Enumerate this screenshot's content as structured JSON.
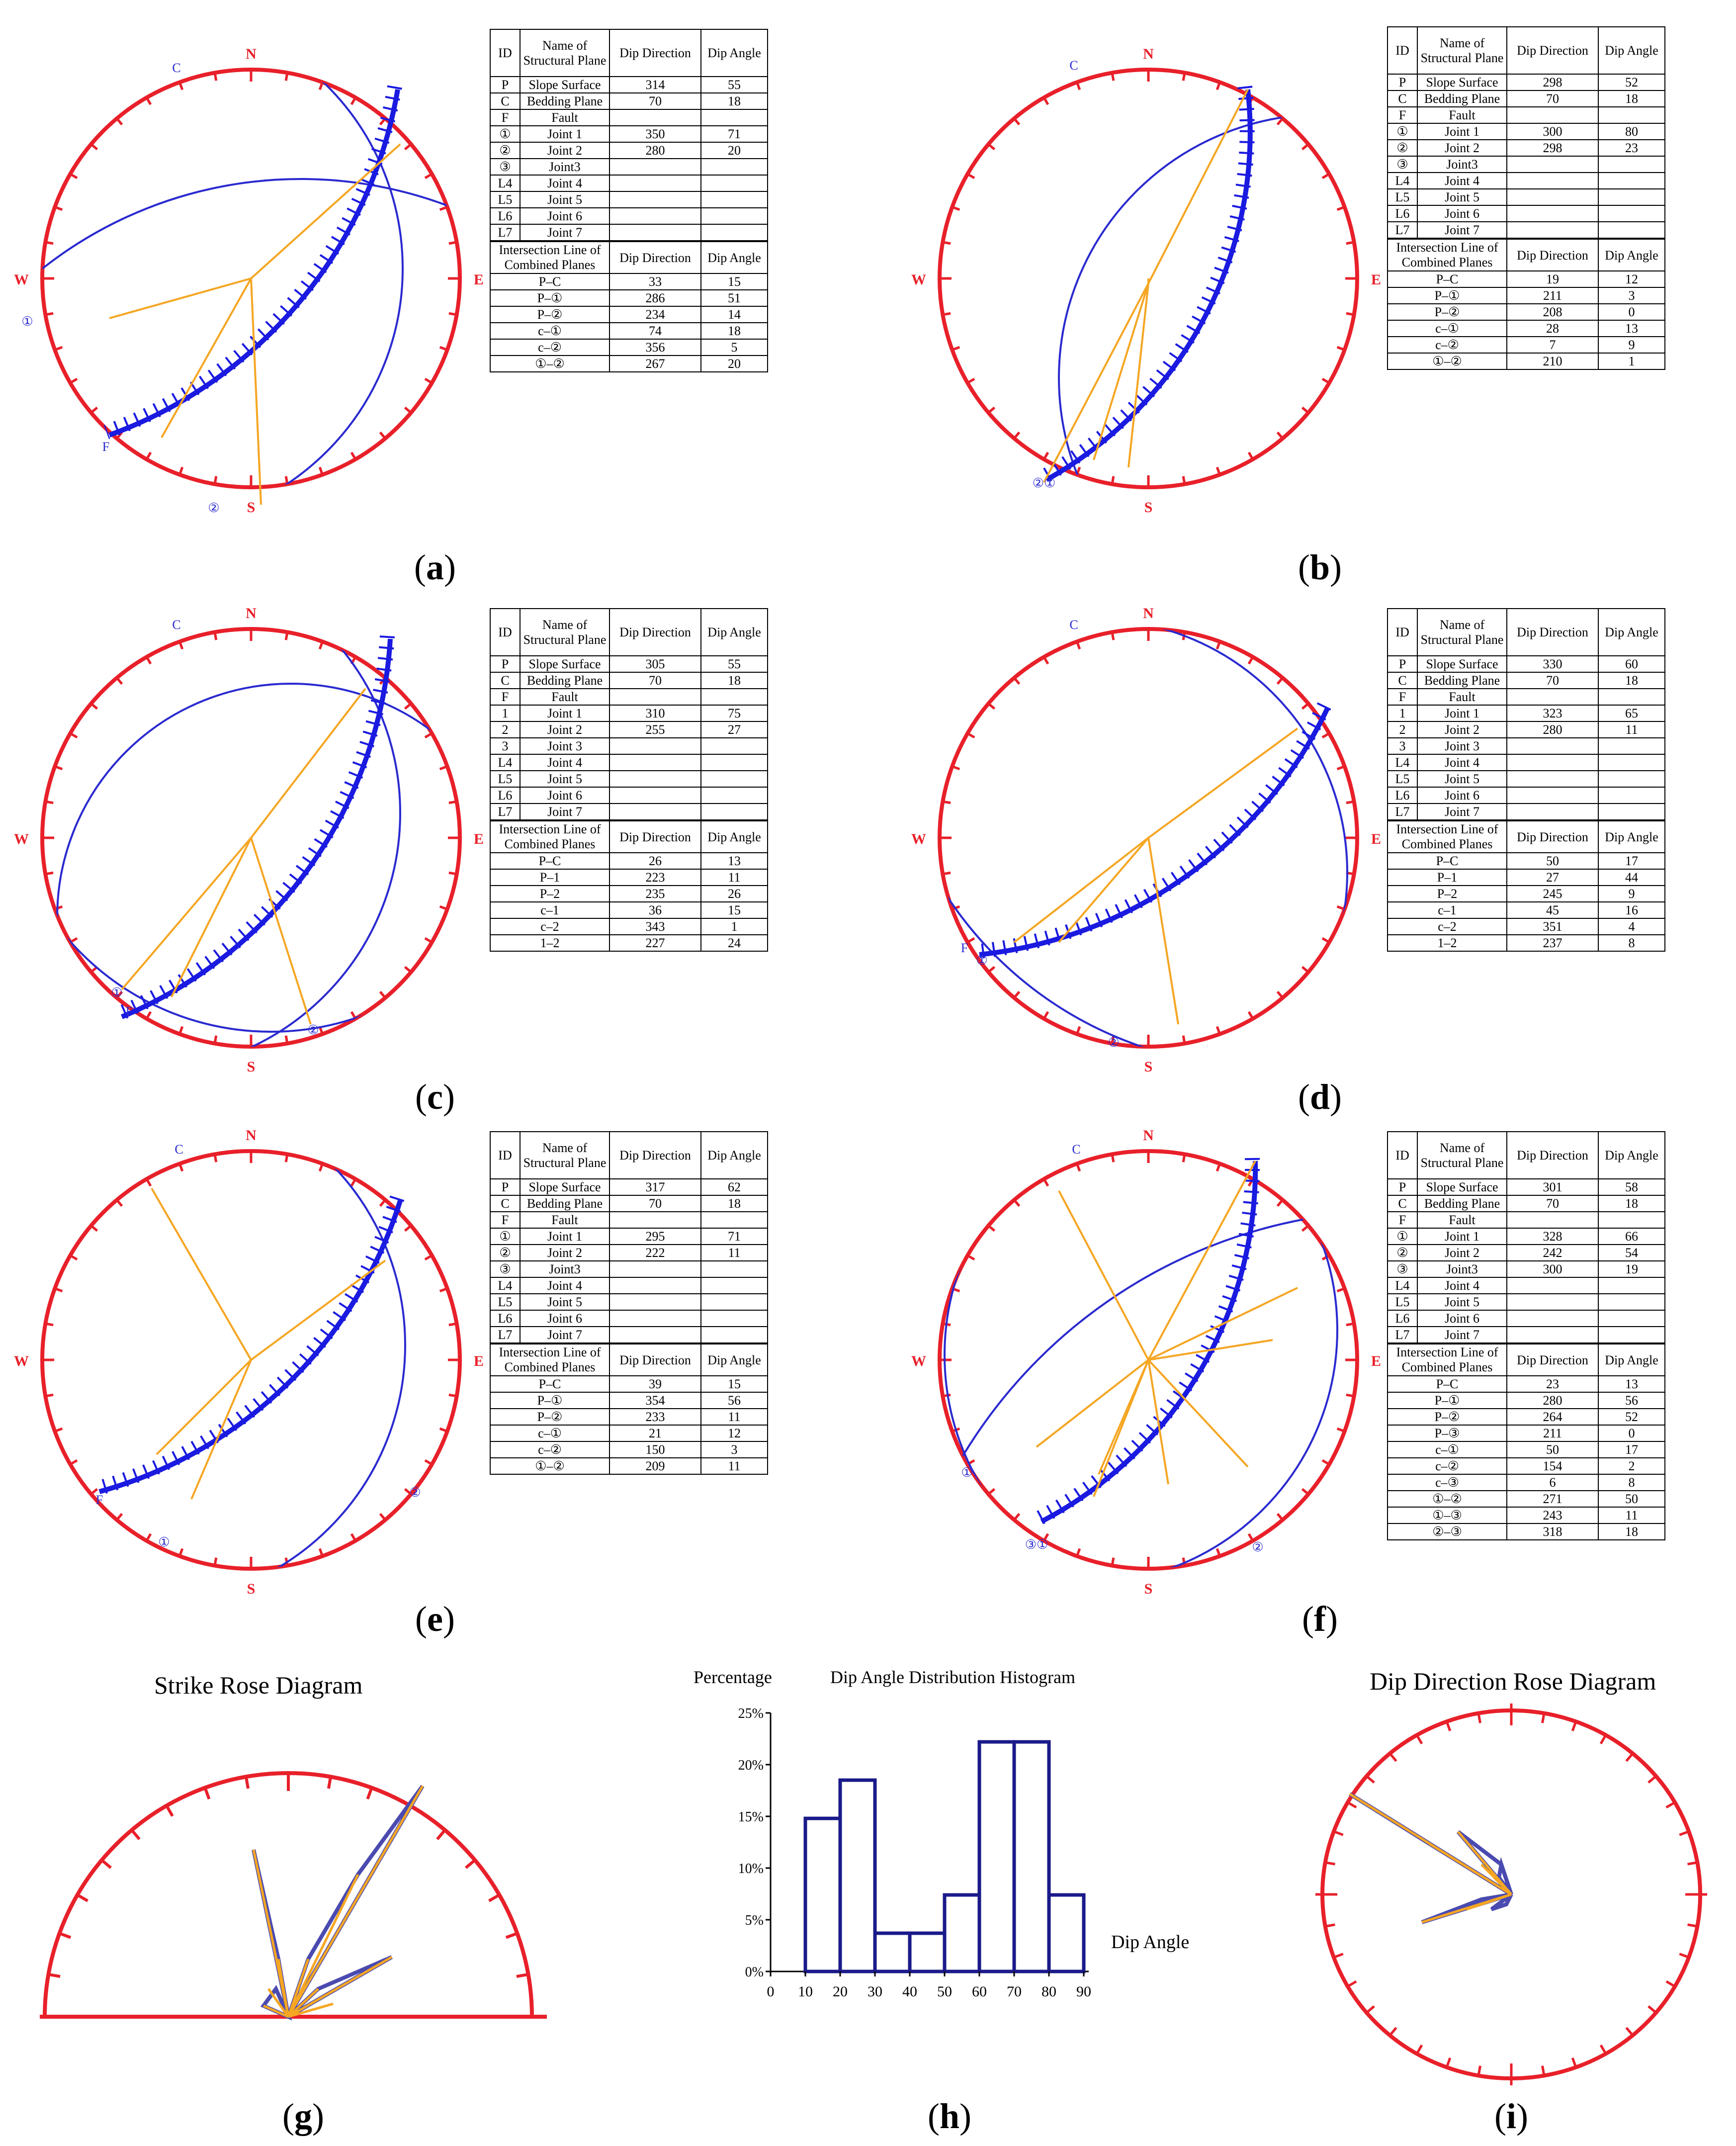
{
  "colors": {
    "outer_circle": "#e8202a",
    "planes": "#2a2ad0",
    "slope": "#1a1ae0",
    "intersections": "#f5a623",
    "table_border": "#000000"
  },
  "compass": {
    "n": "N",
    "s": "S",
    "e": "E",
    "w": "W"
  },
  "table_headers": {
    "id": "ID",
    "name": "Name of Structural Plane",
    "dip_direction": "Dip Direction",
    "dip_angle": "Dip Angle",
    "intersection": "Intersection Line of Combined Planes"
  },
  "panels": [
    {
      "caption": "a",
      "plane_labels": [
        "C",
        "①",
        "F",
        "②"
      ],
      "planes": [
        {
          "id": "P",
          "name": "Slope Surface",
          "dd": "314",
          "da": "55"
        },
        {
          "id": "C",
          "name": "Bedding Plane",
          "dd": "70",
          "da": "18"
        },
        {
          "id": "F",
          "name": "Fault",
          "dd": "",
          "da": ""
        },
        {
          "id": "①",
          "name": "Joint 1",
          "dd": "350",
          "da": "71"
        },
        {
          "id": "②",
          "name": "Joint 2",
          "dd": "280",
          "da": "20"
        },
        {
          "id": "③",
          "name": "Joint3",
          "dd": "",
          "da": ""
        },
        {
          "id": "L4",
          "name": "Joint 4",
          "dd": "",
          "da": ""
        },
        {
          "id": "L5",
          "name": "Joint 5",
          "dd": "",
          "da": ""
        },
        {
          "id": "L6",
          "name": "Joint 6",
          "dd": "",
          "da": ""
        },
        {
          "id": "L7",
          "name": "Joint 7",
          "dd": "",
          "da": ""
        }
      ],
      "intersections": [
        {
          "pair": "P–C",
          "dd": "33",
          "da": "15"
        },
        {
          "pair": "P–①",
          "dd": "286",
          "da": "51"
        },
        {
          "pair": "P–②",
          "dd": "234",
          "da": "14"
        },
        {
          "pair": "c–①",
          "dd": "74",
          "da": "18"
        },
        {
          "pair": "c–②",
          "dd": "356",
          "da": "5"
        },
        {
          "pair": "①–②",
          "dd": "267",
          "da": "20"
        }
      ]
    },
    {
      "caption": "b",
      "plane_labels": [
        "C",
        "②①"
      ],
      "planes": [
        {
          "id": "P",
          "name": "Slope Surface",
          "dd": "298",
          "da": "52"
        },
        {
          "id": "C",
          "name": "Bedding Plane",
          "dd": "70",
          "da": "18"
        },
        {
          "id": "F",
          "name": "Fault",
          "dd": "",
          "da": ""
        },
        {
          "id": "①",
          "name": "Joint 1",
          "dd": "300",
          "da": "80"
        },
        {
          "id": "②",
          "name": "Joint 2",
          "dd": "298",
          "da": "23"
        },
        {
          "id": "③",
          "name": "Joint3",
          "dd": "",
          "da": ""
        },
        {
          "id": "L4",
          "name": "Joint 4",
          "dd": "",
          "da": ""
        },
        {
          "id": "L5",
          "name": "Joint 5",
          "dd": "",
          "da": ""
        },
        {
          "id": "L6",
          "name": "Joint 6",
          "dd": "",
          "da": ""
        },
        {
          "id": "L7",
          "name": "Joint 7",
          "dd": "",
          "da": ""
        }
      ],
      "intersections": [
        {
          "pair": "P–C",
          "dd": "19",
          "da": "12"
        },
        {
          "pair": "P–①",
          "dd": "211",
          "da": "3"
        },
        {
          "pair": "P–②",
          "dd": "208",
          "da": "0"
        },
        {
          "pair": "c–①",
          "dd": "28",
          "da": "13"
        },
        {
          "pair": "c–②",
          "dd": "7",
          "da": "9"
        },
        {
          "pair": "①–②",
          "dd": "210",
          "da": "1"
        }
      ]
    },
    {
      "caption": "c",
      "plane_labels": [
        "C",
        "①",
        "F",
        "②"
      ],
      "planes": [
        {
          "id": "P",
          "name": "Slope Surface",
          "dd": "305",
          "da": "55"
        },
        {
          "id": "C",
          "name": "Bedding Plane",
          "dd": "70",
          "da": "18"
        },
        {
          "id": "F",
          "name": "Fault",
          "dd": "",
          "da": ""
        },
        {
          "id": "1",
          "name": "Joint 1",
          "dd": "310",
          "da": "75"
        },
        {
          "id": "2",
          "name": "Joint 2",
          "dd": "255",
          "da": "27"
        },
        {
          "id": "3",
          "name": "Joint 3",
          "dd": "",
          "da": ""
        },
        {
          "id": "L4",
          "name": "Joint 4",
          "dd": "",
          "da": ""
        },
        {
          "id": "L5",
          "name": "Joint 5",
          "dd": "",
          "da": ""
        },
        {
          "id": "L6",
          "name": "Joint 6",
          "dd": "",
          "da": ""
        },
        {
          "id": "L7",
          "name": "Joint 7",
          "dd": "",
          "da": ""
        }
      ],
      "intersections": [
        {
          "pair": "P–C",
          "dd": "26",
          "da": "13"
        },
        {
          "pair": "P–1",
          "dd": "223",
          "da": "11"
        },
        {
          "pair": "P–2",
          "dd": "235",
          "da": "26"
        },
        {
          "pair": "c–1",
          "dd": "36",
          "da": "15"
        },
        {
          "pair": "c–2",
          "dd": "343",
          "da": "1"
        },
        {
          "pair": "1–2",
          "dd": "227",
          "da": "24"
        }
      ]
    },
    {
      "caption": "d",
      "plane_labels": [
        "C",
        "F",
        "①",
        "②"
      ],
      "planes": [
        {
          "id": "P",
          "name": "Slope Surface",
          "dd": "330",
          "da": "60"
        },
        {
          "id": "C",
          "name": "Bedding Plane",
          "dd": "70",
          "da": "18"
        },
        {
          "id": "F",
          "name": "Fault",
          "dd": "",
          "da": ""
        },
        {
          "id": "1",
          "name": "Joint 1",
          "dd": "323",
          "da": "65"
        },
        {
          "id": "2",
          "name": "Joint 2",
          "dd": "280",
          "da": "11"
        },
        {
          "id": "3",
          "name": "Joint 3",
          "dd": "",
          "da": ""
        },
        {
          "id": "L4",
          "name": "Joint 4",
          "dd": "",
          "da": ""
        },
        {
          "id": "L5",
          "name": "Joint 5",
          "dd": "",
          "da": ""
        },
        {
          "id": "L6",
          "name": "Joint 6",
          "dd": "",
          "da": ""
        },
        {
          "id": "L7",
          "name": "Joint 7",
          "dd": "",
          "da": ""
        }
      ],
      "intersections": [
        {
          "pair": "P–C",
          "dd": "50",
          "da": "17"
        },
        {
          "pair": "P–1",
          "dd": "27",
          "da": "44"
        },
        {
          "pair": "P–2",
          "dd": "245",
          "da": "9"
        },
        {
          "pair": "c–1",
          "dd": "45",
          "da": "16"
        },
        {
          "pair": "c–2",
          "dd": "351",
          "da": "4"
        },
        {
          "pair": "1–2",
          "dd": "237",
          "da": "8"
        }
      ]
    },
    {
      "caption": "e",
      "plane_labels": [
        "C",
        "F",
        "①",
        "②"
      ],
      "planes": [
        {
          "id": "P",
          "name": "Slope Surface",
          "dd": "317",
          "da": "62"
        },
        {
          "id": "C",
          "name": "Bedding Plane",
          "dd": "70",
          "da": "18"
        },
        {
          "id": "F",
          "name": "Fault",
          "dd": "",
          "da": ""
        },
        {
          "id": "①",
          "name": "Joint 1",
          "dd": "295",
          "da": "71"
        },
        {
          "id": "②",
          "name": "Joint 2",
          "dd": "222",
          "da": "11"
        },
        {
          "id": "③",
          "name": "Joint3",
          "dd": "",
          "da": ""
        },
        {
          "id": "L4",
          "name": "Joint 4",
          "dd": "",
          "da": ""
        },
        {
          "id": "L5",
          "name": "Joint 5",
          "dd": "",
          "da": ""
        },
        {
          "id": "L6",
          "name": "Joint 6",
          "dd": "",
          "da": ""
        },
        {
          "id": "L7",
          "name": "Joint 7",
          "dd": "",
          "da": ""
        }
      ],
      "intersections": [
        {
          "pair": "P–C",
          "dd": "39",
          "da": "15"
        },
        {
          "pair": "P–①",
          "dd": "354",
          "da": "56"
        },
        {
          "pair": "P–②",
          "dd": "233",
          "da": "11"
        },
        {
          "pair": "c–①",
          "dd": "21",
          "da": "12"
        },
        {
          "pair": "c–②",
          "dd": "150",
          "da": "3"
        },
        {
          "pair": "①–②",
          "dd": "209",
          "da": "11"
        }
      ]
    },
    {
      "caption": "f",
      "plane_labels": [
        "C",
        "①",
        "③①",
        "②"
      ],
      "planes": [
        {
          "id": "①",
          "name": "Joint 1",
          "dd": "328",
          "da": "66"
        },
        {
          "id": "②",
          "name": "Joint 2",
          "dd": "242",
          "da": "54"
        },
        {
          "id": "③",
          "name": "Joint3",
          "dd": "300",
          "da": "19"
        },
        {
          "id": "L4",
          "name": "Joint 4",
          "dd": "",
          "da": ""
        },
        {
          "id": "L5",
          "name": "Joint 5",
          "dd": "",
          "da": ""
        },
        {
          "id": "L6",
          "name": "Joint 6",
          "dd": "",
          "da": ""
        },
        {
          "id": "L7",
          "name": "Joint 7",
          "dd": "",
          "da": ""
        }
      ],
      "planes_top": [
        {
          "id": "P",
          "name": "Slope Surface",
          "dd": "301",
          "da": "58"
        },
        {
          "id": "C",
          "name": "Bedding Plane",
          "dd": "70",
          "da": "18"
        },
        {
          "id": "F",
          "name": "Fault",
          "dd": "",
          "da": ""
        }
      ],
      "intersections": [
        {
          "pair": "P–C",
          "dd": "23",
          "da": "13"
        },
        {
          "pair": "P–①",
          "dd": "280",
          "da": "56"
        },
        {
          "pair": "P–②",
          "dd": "264",
          "da": "52"
        },
        {
          "pair": "P–③",
          "dd": "211",
          "da": "0"
        },
        {
          "pair": "c–①",
          "dd": "50",
          "da": "17"
        },
        {
          "pair": "c–②",
          "dd": "154",
          "da": "2"
        },
        {
          "pair": "c–③",
          "dd": "6",
          "da": "8"
        },
        {
          "pair": "①–②",
          "dd": "271",
          "da": "50"
        },
        {
          "pair": "①–③",
          "dd": "243",
          "da": "11"
        },
        {
          "pair": "②–③",
          "dd": "318",
          "da": "18"
        }
      ]
    }
  ],
  "bottom": {
    "strike_rose": {
      "title": "Strike Rose Diagram",
      "caption": "g"
    },
    "histogram": {
      "title": "Dip Angle Distribution Histogram",
      "ylabel": "Percentage",
      "xlabel": "Dip Angle",
      "caption": "h",
      "x_ticks": [
        "0",
        "10",
        "20",
        "30",
        "40",
        "50",
        "60",
        "70",
        "80",
        "90"
      ],
      "y_ticks": [
        "0%",
        "5%",
        "10%",
        "15%",
        "20%",
        "25%"
      ]
    },
    "dip_rose": {
      "title": "Dip Direction Rose Diagram",
      "caption": "i"
    }
  },
  "chart_data": {
    "type": "bar",
    "title": "Dip Angle Distribution Histogram",
    "xlabel": "Dip Angle",
    "ylabel": "Percentage",
    "categories": [
      "0-10",
      "10-20",
      "20-30",
      "30-40",
      "40-50",
      "50-60",
      "60-70",
      "70-80",
      "80-90"
    ],
    "values": [
      0,
      14.8,
      18.5,
      3.7,
      3.7,
      7.4,
      22.2,
      22.2,
      7.4
    ],
    "ylim": [
      0,
      25
    ],
    "xlim": [
      0,
      90
    ]
  }
}
